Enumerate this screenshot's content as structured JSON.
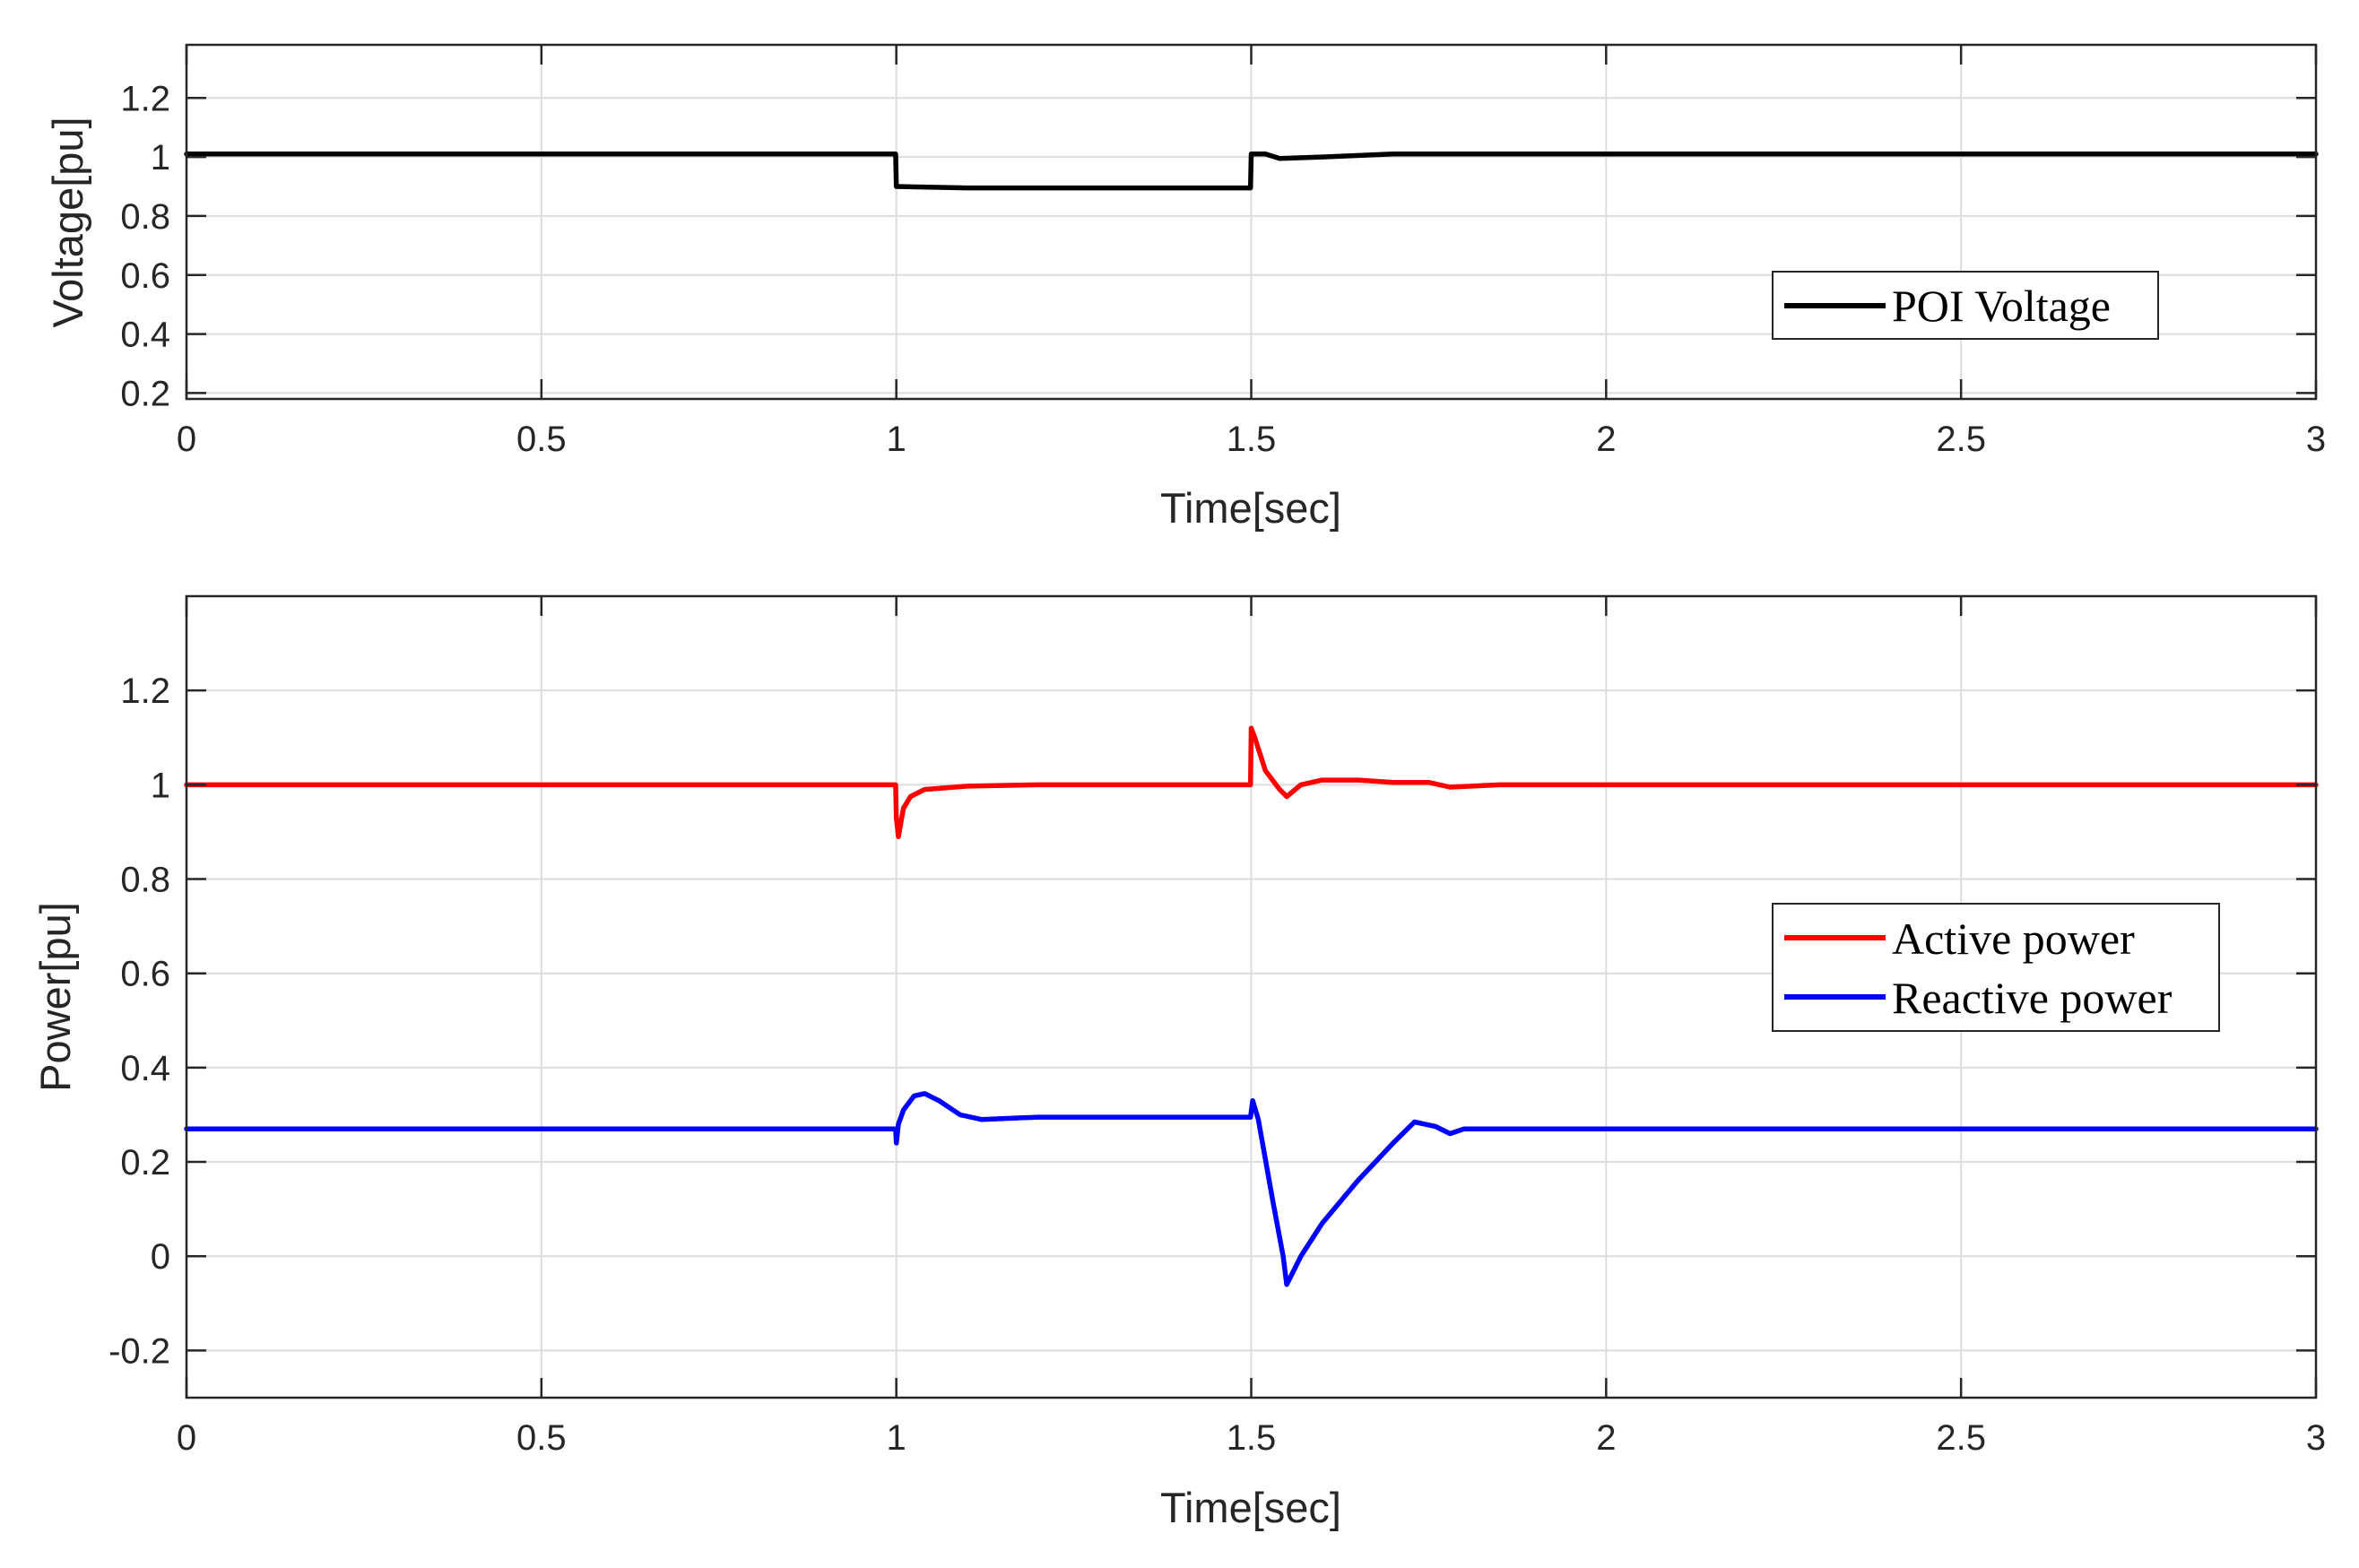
{
  "chart_data": [
    {
      "type": "line",
      "id": "voltage",
      "title": "",
      "xlabel": "Time[sec]",
      "ylabel": "Voltage[pu]",
      "xlim": [
        0,
        3
      ],
      "ylim": [
        0.18,
        1.38
      ],
      "xticks": [
        0,
        0.5,
        1,
        1.5,
        2,
        2.5,
        3
      ],
      "xtick_labels": [
        "0",
        "0.5",
        "1",
        "1.5",
        "2",
        "2.5",
        "3"
      ],
      "yticks": [
        0.2,
        0.4,
        0.6,
        0.8,
        1,
        1.2
      ],
      "ytick_labels": [
        "0.2",
        "0.4",
        "0.6",
        "0.8",
        "1",
        "1.2"
      ],
      "grid": true,
      "legend_position": "right-middle",
      "series": [
        {
          "name": "POI Voltage",
          "color": "#000000",
          "x": [
            0,
            0.999,
            1.0,
            1.1,
            1.499,
            1.5,
            1.52,
            1.54,
            1.6,
            1.7,
            1.8,
            3.0
          ],
          "y": [
            1.01,
            1.01,
            0.9,
            0.895,
            0.895,
            1.01,
            1.01,
            0.995,
            1.0,
            1.01,
            1.01,
            1.01
          ]
        }
      ]
    },
    {
      "type": "line",
      "id": "power",
      "title": "",
      "xlabel": "Time[sec]",
      "ylabel": "Power[pu]",
      "xlim": [
        0,
        3
      ],
      "ylim": [
        -0.3,
        1.4
      ],
      "xticks": [
        0,
        0.5,
        1,
        1.5,
        2,
        2.5,
        3
      ],
      "xtick_labels": [
        "0",
        "0.5",
        "1",
        "1.5",
        "2",
        "2.5",
        "3"
      ],
      "yticks": [
        -0.2,
        0,
        0.2,
        0.4,
        0.6,
        0.8,
        1,
        1.2
      ],
      "ytick_labels": [
        "-0.2",
        "0",
        "0.2",
        "0.4",
        "0.6",
        "0.8",
        "1",
        "1.2"
      ],
      "grid": true,
      "legend_position": "right-middle",
      "series": [
        {
          "name": "Active power",
          "color": "#ff0000",
          "x": [
            0,
            0.999,
            1.0,
            1.003,
            1.01,
            1.02,
            1.04,
            1.1,
            1.2,
            1.499,
            1.5,
            1.505,
            1.52,
            1.54,
            1.55,
            1.57,
            1.6,
            1.65,
            1.7,
            1.75,
            1.78,
            1.85,
            3.0
          ],
          "y": [
            1.0,
            1.0,
            0.93,
            0.89,
            0.95,
            0.975,
            0.99,
            0.997,
            1.0,
            1.0,
            1.12,
            1.1,
            1.03,
            0.99,
            0.975,
            1.0,
            1.01,
            1.01,
            1.005,
            1.005,
            0.995,
            1.0,
            1.0
          ]
        },
        {
          "name": "Reactive power",
          "color": "#0000ff",
          "x": [
            0,
            0.999,
            1.0,
            1.003,
            1.01,
            1.025,
            1.04,
            1.06,
            1.09,
            1.12,
            1.2,
            1.499,
            1.502,
            1.51,
            1.53,
            1.545,
            1.55,
            1.56,
            1.57,
            1.6,
            1.65,
            1.7,
            1.72,
            1.73,
            1.76,
            1.78,
            1.8,
            3.0
          ],
          "y": [
            0.27,
            0.27,
            0.24,
            0.28,
            0.31,
            0.34,
            0.345,
            0.33,
            0.3,
            0.29,
            0.295,
            0.295,
            0.33,
            0.29,
            0.12,
            0.0,
            -0.06,
            -0.03,
            0.0,
            0.07,
            0.16,
            0.24,
            0.27,
            0.285,
            0.275,
            0.26,
            0.27,
            0.27
          ]
        }
      ]
    }
  ]
}
